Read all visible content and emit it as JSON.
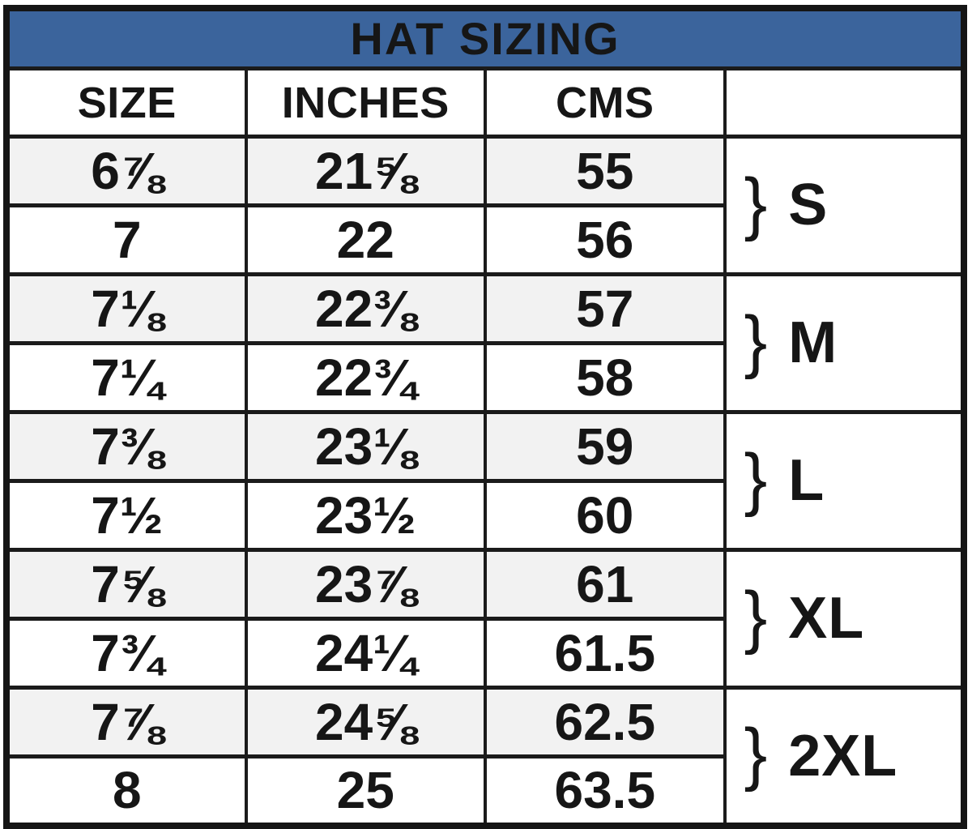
{
  "chart_data": {
    "type": "table",
    "title": "HAT SIZING",
    "columns": {
      "size": "SIZE",
      "inches": "INCHES",
      "cms": "CMS",
      "group": ""
    },
    "rows": [
      {
        "size": "6⅞",
        "inches": "21⅝",
        "cms": "55"
      },
      {
        "size": "7",
        "inches": "22",
        "cms": "56"
      },
      {
        "size": "7⅛",
        "inches": "22⅜",
        "cms": "57"
      },
      {
        "size": "7¼",
        "inches": "22¾",
        "cms": "58"
      },
      {
        "size": "7⅜",
        "inches": "23⅛",
        "cms": "59"
      },
      {
        "size": "7½",
        "inches": "23½",
        "cms": "60"
      },
      {
        "size": "7⅝",
        "inches": "23⅞",
        "cms": "61"
      },
      {
        "size": "7¾",
        "inches": "24¼",
        "cms": "61.5"
      },
      {
        "size": "7⅞",
        "inches": "24⅝",
        "cms": "62.5"
      },
      {
        "size": "8",
        "inches": "25",
        "cms": "63.5"
      }
    ],
    "groups": [
      {
        "brace": "}",
        "label": "S",
        "row_span": 2
      },
      {
        "brace": "}",
        "label": "M",
        "row_span": 2
      },
      {
        "brace": "}",
        "label": "L",
        "row_span": 2
      },
      {
        "brace": "}",
        "label": "XL",
        "row_span": 2
      },
      {
        "brace": "}",
        "label": "2XL",
        "row_span": 2
      }
    ],
    "layout_hints": {
      "striped_rows": "odd data rows shaded",
      "group_column_plain": true
    }
  },
  "colors": {
    "title_bg": "#3b649c",
    "title_border": "#1a2740",
    "title_text": "#fbfdff",
    "stripe_bg": "#f2f2f2",
    "row_bg": "#ffffff",
    "border": "#1b1b1b",
    "text": "#161616"
  }
}
